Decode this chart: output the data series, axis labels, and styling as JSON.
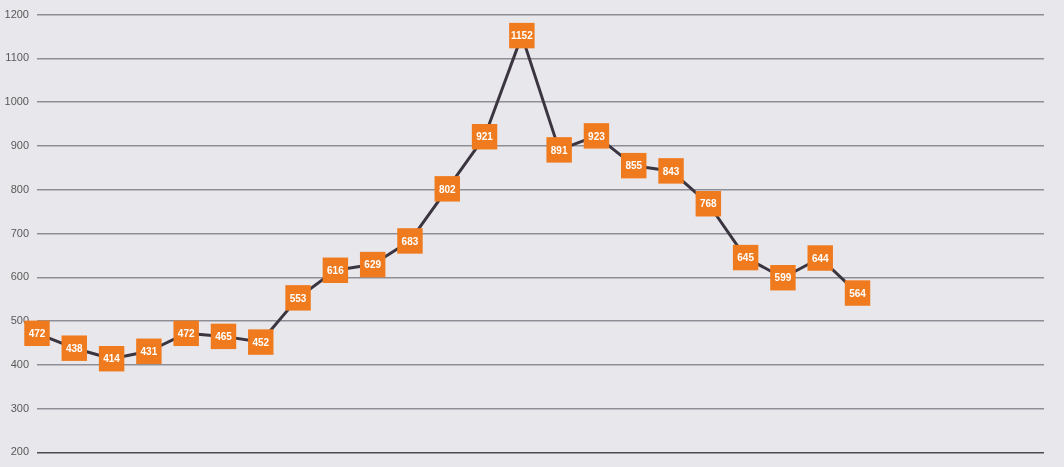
{
  "chart_data": {
    "type": "line",
    "categories": [
      null,
      null,
      null,
      null,
      null,
      null,
      null,
      null,
      null,
      null,
      null,
      null,
      null,
      null,
      null,
      null,
      null,
      null,
      null,
      null,
      null,
      null,
      null,
      null,
      null,
      null,
      null,
      null
    ],
    "series": [
      {
        "color": "#3b3541",
        "colors": [
          "#f07b1f",
          "#f07b1f",
          "#f07b1f",
          "#f07b1f",
          "#f07b1f",
          "#f07b1f",
          "#f07b1f",
          "#f07b1f",
          "#f07b1f",
          "#f07b1f",
          "#f07b1f",
          "#f07b1f",
          "#f07b1f",
          "#f07b1f",
          "#f07b1f",
          "#f07b1f",
          "#f07b1f",
          "#f07b1f",
          "#f07b1f",
          "#f07b1f",
          "#f07b1f",
          "#f07b1f",
          "#f07b1f",
          null,
          null,
          null,
          null,
          null
        ],
        "values": [
          472,
          438,
          414,
          431,
          472,
          465,
          452,
          553,
          616,
          629,
          683,
          802,
          921,
          1152,
          891,
          923,
          855,
          843,
          768,
          645,
          599,
          644,
          564,
          null,
          null,
          null,
          null,
          null
        ]
      }
    ],
    "ylim": [
      200,
      1200
    ],
    "yticks": [
      200,
      300,
      400,
      500,
      600,
      700,
      800,
      900,
      1000,
      1100,
      1200
    ],
    "grid": "y",
    "tick_labels": "y",
    "marker": "square",
    "line_style": "solid",
    "data_labels": true,
    "legend": false
  }
}
